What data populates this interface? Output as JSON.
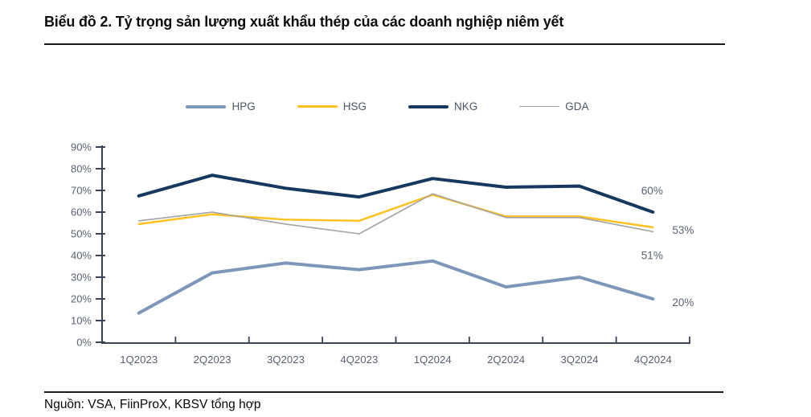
{
  "page": {
    "title": "Biểu đồ 2. Tỷ trọng sản lượng xuất khẩu thép của các doanh nghiệp niêm yết",
    "source": "Nguồn: VSA, FiinProX, KBSV tổng hợp"
  },
  "chart_data": {
    "type": "line",
    "title": "Biểu đồ 2. Tỷ trọng sản lượng xuất khẩu thép của các doanh nghiệp niêm yết",
    "categories": [
      "1Q2023",
      "2Q2023",
      "3Q2023",
      "4Q2023",
      "1Q2024",
      "2Q2024",
      "3Q2024",
      "4Q2024"
    ],
    "series": [
      {
        "name": "HPG",
        "color": "#7E96BA",
        "line_width": 4,
        "values": [
          13.5,
          32,
          36.5,
          33.5,
          37.5,
          25.5,
          30,
          20
        ]
      },
      {
        "name": "HSG",
        "color": "#FFC220",
        "line_width": 2.5,
        "values": [
          54.5,
          59,
          56.5,
          56,
          68,
          58,
          58,
          53
        ]
      },
      {
        "name": "NKG",
        "color": "#16375E",
        "line_width": 4,
        "values": [
          67.5,
          77,
          71,
          67,
          75.5,
          71.5,
          72,
          60
        ]
      },
      {
        "name": "GDA",
        "color": "#A3A3A3",
        "line_width": 1.6,
        "values": [
          56,
          60,
          54.5,
          50,
          68.5,
          57.5,
          57.5,
          51
        ]
      }
    ],
    "end_labels": [
      {
        "series": "NKG",
        "text": "60%"
      },
      {
        "series": "HSG",
        "text": "53%"
      },
      {
        "series": "GDA",
        "text": "51%"
      },
      {
        "series": "HPG",
        "text": "20%"
      }
    ],
    "y_ticks": [
      "0%",
      "10%",
      "20%",
      "30%",
      "40%",
      "50%",
      "60%",
      "70%",
      "80%",
      "90%"
    ],
    "ylim": [
      0,
      90
    ],
    "grid": false,
    "legend_position": "top",
    "axis_color": "#3A4454",
    "tick_label_color": "#5A6270"
  }
}
